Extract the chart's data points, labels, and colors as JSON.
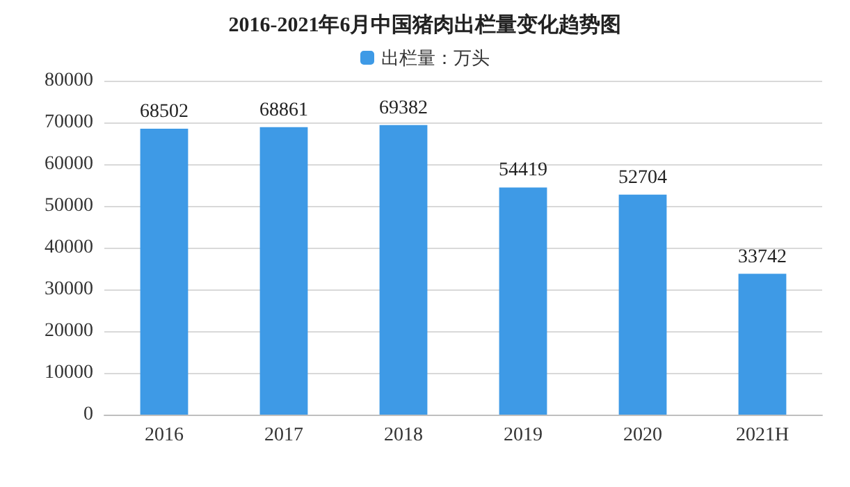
{
  "chart_data": {
    "type": "bar",
    "title": "2016-2021年6月中国猪肉出栏量变化趋势图",
    "categories": [
      "2016",
      "2017",
      "2018",
      "2019",
      "2020",
      "2021H"
    ],
    "series": [
      {
        "name": "出栏量：万头",
        "color": "#3e9ae6",
        "values": [
          68502,
          68861,
          69382,
          54419,
          52704,
          33742
        ]
      }
    ],
    "ylim": [
      0,
      80000
    ],
    "yticks": [
      0,
      10000,
      20000,
      30000,
      40000,
      50000,
      60000,
      70000,
      80000
    ],
    "grid": "y",
    "legend": "top",
    "data_labels": true
  }
}
